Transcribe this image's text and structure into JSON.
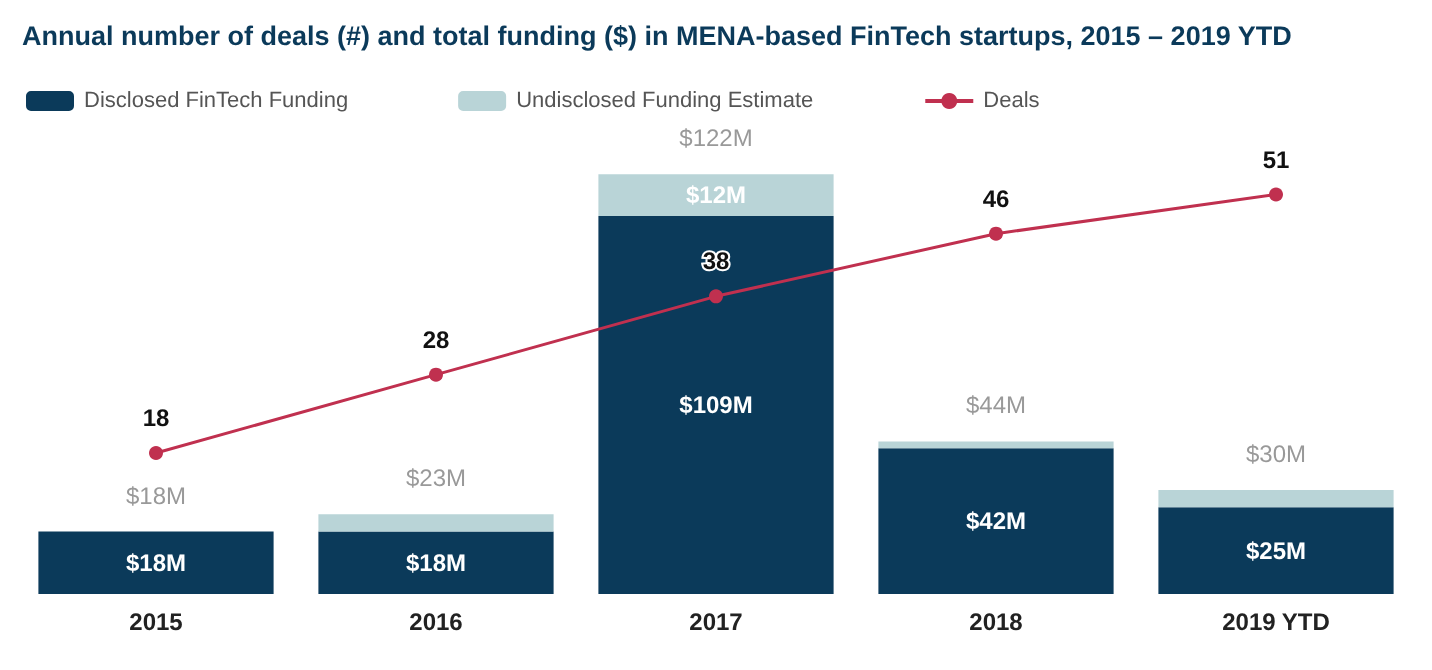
{
  "chart_data": {
    "type": "bar",
    "title": "Annual number of deals (#) and total funding ($) in MENA-based FinTech startups, 2015 – 2019 YTD",
    "categories": [
      "2015",
      "2016",
      "2017",
      "2018",
      "2019 YTD"
    ],
    "stacked": true,
    "series": [
      {
        "name": "Disclosed FinTech Funding",
        "color": "#0b3a5a",
        "values": [
          18,
          18,
          109,
          42,
          25
        ],
        "value_labels": [
          "$18M",
          "$18M",
          "$109M",
          "$42M",
          "$25M"
        ]
      },
      {
        "name": "Undisclosed Funding Estimate",
        "color": "#b9d4d7",
        "values": [
          0,
          5,
          12,
          2,
          5
        ],
        "value_labels": [
          null,
          null,
          "$12M",
          null,
          null
        ]
      },
      {
        "name": "Deals",
        "type": "line",
        "axis": "y2",
        "color": "#c0304f",
        "marker": "circle",
        "values": [
          18,
          28,
          38,
          46,
          51
        ],
        "value_labels": [
          "18",
          "28",
          "38",
          "46",
          "51"
        ]
      }
    ],
    "totals": [
      "$18M",
      "$23M",
      "$122M",
      "$44M",
      "$30M"
    ],
    "legend": "top left",
    "grid": false
  }
}
